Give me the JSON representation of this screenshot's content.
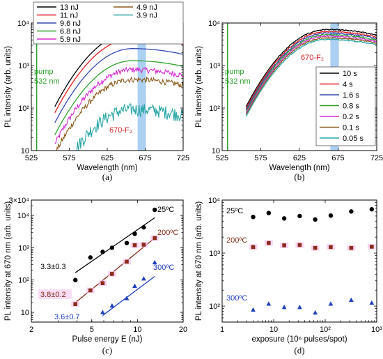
{
  "chart_data": [
    {
      "id": "a",
      "type": "line",
      "panel_label": "(a)",
      "xlabel": "Wavelength (nm)",
      "ylabel": "PL intensity (arb. units)",
      "xlim": [
        525,
        725
      ],
      "ylim": [
        10,
        10000
      ],
      "ylog": true,
      "x_ticks": [
        525,
        575,
        625,
        675,
        725
      ],
      "y_ticks": [
        10,
        100,
        1000,
        10000
      ],
      "y_tick_labels": [
        "10",
        "10²",
        "10³",
        "10⁴"
      ],
      "highlight_band": {
        "x": [
          665,
          676
        ],
        "color": "#9ec8f0"
      },
      "pump_line": {
        "x": 532,
        "color": "#2ca02c"
      },
      "annotations": [
        {
          "text": "pump",
          "color": "#2ca02c"
        },
        {
          "text": "532 nm",
          "color": "#2ca02c"
        },
        {
          "text": "670-F₂",
          "color": "#d62728"
        }
      ],
      "legend_position": "top-left",
      "series": [
        {
          "name": "13 nJ",
          "color": "#000000",
          "peak": 6000,
          "center": 658,
          "noisy": false
        },
        {
          "name": "11 nJ",
          "color": "#e31a1c",
          "peak": 4300,
          "center": 658,
          "noisy": false
        },
        {
          "name": "9.6 nJ",
          "color": "#3548b0",
          "peak": 2500,
          "center": 658,
          "noisy": false
        },
        {
          "name": "6.8 nJ",
          "color": "#2ca02c",
          "peak": 1300,
          "center": 658,
          "noisy": false
        },
        {
          "name": "5.9 nJ",
          "color": "#d62ad6",
          "peak": 800,
          "center": 658,
          "noisy": true
        },
        {
          "name": "4.9 nJ",
          "color": "#8b5a1a",
          "peak": 470,
          "center": 658,
          "noisy": true
        },
        {
          "name": "3.9 nJ",
          "color": "#2aa6a6",
          "peak": 95,
          "center": 658,
          "noisy": true
        }
      ]
    },
    {
      "id": "b",
      "type": "line",
      "panel_label": "(b)",
      "xlabel": "Wavelength (nm)",
      "ylabel": "PL intensity (arb. units)",
      "xlim": [
        525,
        725
      ],
      "ylim": [
        10,
        10000
      ],
      "ylog": true,
      "x_ticks": [
        525,
        575,
        625,
        675,
        725
      ],
      "y_ticks": [
        10,
        100,
        1000,
        10000
      ],
      "y_tick_labels": [
        "10",
        "10²",
        "10³",
        "10⁴"
      ],
      "highlight_band": {
        "x": [
          665,
          676
        ],
        "color": "#9ec8f0"
      },
      "pump_line": {
        "x": 532,
        "color": "#2ca02c"
      },
      "annotations": [
        {
          "text": "pump",
          "color": "#2ca02c"
        },
        {
          "text": "532 nm",
          "color": "#2ca02c"
        },
        {
          "text": "670-F₂",
          "color": "#d62728"
        }
      ],
      "legend_position": "bottom-right",
      "series": [
        {
          "name": "10 s",
          "color": "#000000",
          "peak": 7000,
          "center": 660
        },
        {
          "name": "4 s",
          "color": "#e31a1c",
          "peak": 6300,
          "center": 660
        },
        {
          "name": "1.6 s",
          "color": "#3548b0",
          "peak": 5800,
          "center": 660
        },
        {
          "name": "0.8 s",
          "color": "#2ca02c",
          "peak": 5300,
          "center": 660
        },
        {
          "name": "0.2 s",
          "color": "#d62ad6",
          "peak": 4900,
          "center": 660
        },
        {
          "name": "0.1 s",
          "color": "#8b5a1a",
          "peak": 4500,
          "center": 660
        },
        {
          "name": "0.05 s",
          "color": "#2aa6a6",
          "peak": 4100,
          "center": 660
        }
      ]
    },
    {
      "id": "c",
      "type": "scatter",
      "panel_label": "(c)",
      "xlabel": "Pulse energy E (nJ)",
      "ylabel": "PL intensity at 670 nm (arb. units)",
      "xlim": [
        2,
        20
      ],
      "ylim": [
        5,
        30000
      ],
      "xlog": true,
      "ylog": true,
      "x_ticks": [
        2,
        5,
        10,
        20
      ],
      "x_tick_labels": [
        "2",
        "5",
        "10",
        "20"
      ],
      "y_ticks": [
        10,
        100,
        1000,
        10000,
        30000
      ],
      "y_tick_labels": [
        "10",
        "10²",
        "10³",
        "10⁴",
        "3×10⁴"
      ],
      "series": [
        {
          "name": "25ºC",
          "color": "#000000",
          "marker": "circle",
          "x": [
            3.9,
            4.9,
            5.9,
            6.8,
            8.5,
            9.6,
            11,
            13
          ],
          "y": [
            100,
            500,
            750,
            1000,
            1400,
            2700,
            4300,
            15000
          ],
          "fit": {
            "x": [
              3.9,
              13
            ],
            "y": [
              170,
              8500
            ],
            "label": "3.3±0.3"
          }
        },
        {
          "name": "200ºC",
          "color": "#8b2a1a",
          "marker": "square",
          "x": [
            3.9,
            4.9,
            5.9,
            6.8,
            8.5,
            9.6,
            11,
            13
          ],
          "y": [
            18,
            48,
            80,
            155,
            370,
            1200,
            1250,
            2000
          ],
          "fit": {
            "x": [
              3.9,
              13
            ],
            "y": [
              20,
              2000
            ],
            "label": "3.8±0.2"
          }
        },
        {
          "name": "300ºC",
          "color": "#1f3fbf",
          "marker": "triangle",
          "x": [
            5.9,
            6.8,
            8.5,
            9.6,
            11,
            13
          ],
          "y": [
            10,
            16,
            27,
            65,
            110,
            350
          ],
          "fit": {
            "x": [
              5.9,
              13
            ],
            "y": [
              8,
              130
            ],
            "label": "3.6±0.7"
          }
        }
      ]
    },
    {
      "id": "d",
      "type": "scatter",
      "panel_label": "(d)",
      "xlabel": "exposure (10⁶ pulses/spot)",
      "ylabel": "PL intensity at 670 nm (arb. units)",
      "xlim": [
        1,
        1000
      ],
      "ylim": [
        50,
        10000
      ],
      "xlog": true,
      "ylog": true,
      "x_ticks": [
        1,
        10,
        100,
        1000
      ],
      "x_tick_labels": [
        "1",
        "10",
        "10²",
        "10³"
      ],
      "y_ticks": [
        100,
        1000,
        10000
      ],
      "y_tick_labels": [
        "10²",
        "10³",
        "10⁴"
      ],
      "series": [
        {
          "name": "25ºC",
          "color": "#000000",
          "marker": "circle",
          "x": [
            4,
            8,
            16,
            32,
            64,
            128,
            320,
            800
          ],
          "y": [
            4800,
            5700,
            4500,
            5000,
            4300,
            5100,
            6100,
            6700
          ]
        },
        {
          "name": "200ºC",
          "color": "#8b2a1a",
          "marker": "square",
          "x": [
            4,
            8,
            16,
            32,
            64,
            128,
            320,
            800
          ],
          "y": [
            1300,
            1550,
            1400,
            1420,
            1250,
            1300,
            1250,
            1320
          ]
        },
        {
          "name": "300ºC",
          "color": "#1f3fbf",
          "marker": "triangle",
          "x": [
            4,
            8,
            16,
            32,
            64,
            128,
            320,
            800
          ],
          "y": [
            85,
            110,
            95,
            95,
            75,
            110,
            130,
            115
          ]
        }
      ]
    }
  ]
}
